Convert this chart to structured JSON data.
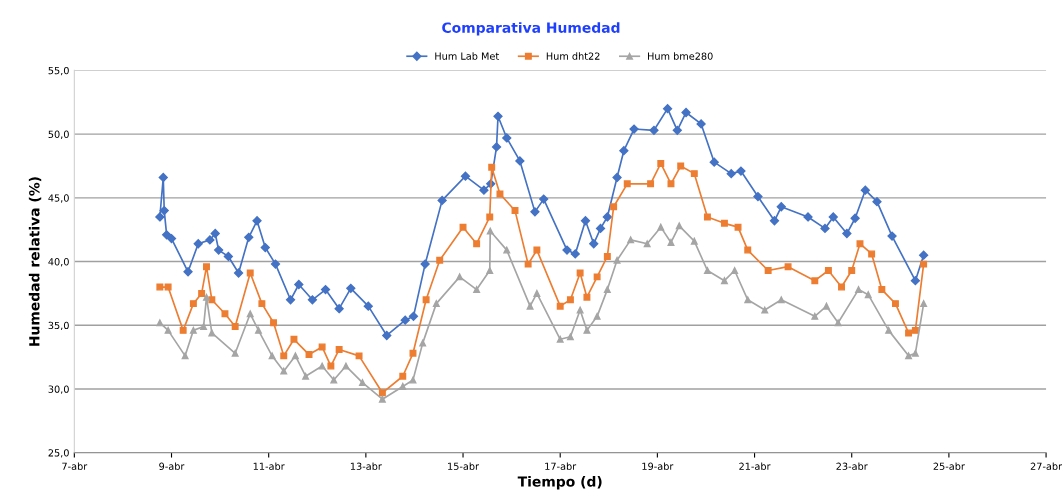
{
  "chart_data": {
    "type": "line",
    "title": "Comparativa Humedad",
    "xlabel": "Tiempo (d)",
    "ylabel": "Humedad relativa (%)",
    "xlim": [
      7,
      27
    ],
    "xticks": [
      {
        "value": 7,
        "label": "7-abr"
      },
      {
        "value": 9,
        "label": "9-abr"
      },
      {
        "value": 11,
        "label": "11-abr"
      },
      {
        "value": 13,
        "label": "13-abr"
      },
      {
        "value": 15,
        "label": "15-abr"
      },
      {
        "value": 17,
        "label": "17-abr"
      },
      {
        "value": 19,
        "label": "19-abr"
      },
      {
        "value": 21,
        "label": "21-abr"
      },
      {
        "value": 23,
        "label": "23-abr"
      },
      {
        "value": 25,
        "label": "25-abr"
      },
      {
        "value": 27,
        "label": "27-abr"
      }
    ],
    "ylim": [
      25,
      55
    ],
    "yticks": [
      {
        "value": 25,
        "label": "25,0"
      },
      {
        "value": 30,
        "label": "30,0"
      },
      {
        "value": 35,
        "label": "35,0"
      },
      {
        "value": 40,
        "label": "40,0"
      },
      {
        "value": 45,
        "label": "45,0"
      },
      {
        "value": 50,
        "label": "50,0"
      },
      {
        "value": 55,
        "label": "55,0"
      }
    ],
    "grid": "y",
    "legend": "top",
    "line_style": "solid",
    "series": [
      {
        "name": "Hum Lab Met",
        "color": "#4472c4",
        "marker": "diamond",
        "x": [
          8.76,
          8.83,
          8.85,
          8.9,
          9.0,
          9.34,
          9.55,
          9.79,
          9.9,
          9.97,
          10.17,
          10.38,
          10.59,
          10.76,
          10.93,
          11.14,
          11.45,
          11.62,
          11.9,
          12.17,
          12.45,
          12.69,
          13.05,
          13.43,
          13.81,
          13.98,
          14.22,
          14.57,
          15.05,
          15.43,
          15.57,
          15.69,
          15.72,
          15.9,
          16.17,
          16.48,
          16.66,
          17.14,
          17.31,
          17.52,
          17.69,
          17.83,
          17.97,
          18.17,
          18.31,
          18.52,
          18.93,
          19.21,
          19.41,
          19.59,
          19.9,
          20.17,
          20.52,
          20.72,
          21.07,
          21.41,
          21.55,
          22.1,
          22.45,
          22.62,
          22.9,
          23.07,
          23.28,
          23.52,
          23.83,
          24.31,
          24.48
        ],
        "values": [
          43.5,
          46.6,
          44.0,
          42.1,
          41.8,
          39.2,
          41.4,
          41.7,
          42.2,
          40.9,
          40.4,
          39.1,
          41.9,
          43.2,
          41.1,
          39.8,
          37.0,
          38.2,
          37.0,
          37.8,
          36.3,
          37.9,
          36.5,
          34.2,
          35.4,
          35.7,
          39.8,
          44.8,
          46.7,
          45.6,
          46.1,
          49.0,
          51.4,
          49.7,
          47.9,
          43.9,
          44.9,
          40.9,
          40.6,
          43.2,
          41.4,
          42.6,
          43.5,
          46.6,
          48.7,
          50.4,
          50.3,
          52.0,
          50.3,
          51.7,
          50.8,
          47.8,
          46.9,
          47.1,
          45.1,
          43.2,
          44.3,
          43.5,
          42.6,
          43.5,
          42.2,
          43.4,
          45.6,
          44.7,
          42.0,
          38.5,
          40.5
        ]
      },
      {
        "name": "Hum dht22",
        "color": "#ed7d31",
        "marker": "square",
        "x": [
          8.76,
          8.93,
          9.24,
          9.45,
          9.62,
          9.72,
          9.83,
          10.1,
          10.31,
          10.62,
          10.86,
          11.1,
          11.31,
          11.52,
          11.83,
          12.1,
          12.28,
          12.45,
          12.86,
          13.34,
          13.76,
          13.97,
          14.24,
          14.52,
          15.0,
          15.28,
          15.55,
          15.59,
          15.76,
          16.07,
          16.34,
          16.52,
          17.0,
          17.21,
          17.41,
          17.55,
          17.76,
          17.97,
          18.1,
          18.38,
          18.86,
          19.07,
          19.28,
          19.48,
          19.76,
          20.03,
          20.38,
          20.66,
          20.86,
          21.28,
          21.69,
          22.24,
          22.52,
          22.79,
          23.0,
          23.17,
          23.41,
          23.62,
          23.9,
          24.17,
          24.31,
          24.48
        ],
        "values": [
          38.0,
          38.0,
          34.6,
          36.7,
          37.5,
          39.6,
          37.0,
          35.9,
          34.9,
          39.1,
          36.7,
          35.2,
          32.6,
          33.9,
          32.7,
          33.3,
          31.8,
          33.1,
          32.6,
          29.7,
          31.0,
          32.8,
          37.0,
          40.1,
          42.7,
          41.4,
          43.5,
          47.4,
          45.3,
          44.0,
          39.8,
          40.9,
          36.5,
          37.0,
          39.1,
          37.2,
          38.8,
          40.4,
          44.3,
          46.1,
          46.1,
          47.7,
          46.1,
          47.5,
          46.9,
          43.5,
          43.0,
          42.7,
          40.9,
          39.3,
          39.6,
          38.5,
          39.3,
          38.0,
          39.3,
          41.4,
          40.6,
          37.8,
          36.7,
          34.4,
          34.6,
          39.8
        ]
      },
      {
        "name": "Hum bme280",
        "color": "#a5a5a5",
        "marker": "triangle",
        "x": [
          8.76,
          8.93,
          9.28,
          9.45,
          9.66,
          9.72,
          9.83,
          10.31,
          10.62,
          10.79,
          11.07,
          11.31,
          11.55,
          11.76,
          12.1,
          12.34,
          12.59,
          12.93,
          13.34,
          13.76,
          13.97,
          14.17,
          14.45,
          14.93,
          15.28,
          15.55,
          15.56,
          15.9,
          16.38,
          16.52,
          17.0,
          17.21,
          17.41,
          17.55,
          17.76,
          17.97,
          18.17,
          18.45,
          18.79,
          19.07,
          19.28,
          19.45,
          19.76,
          20.03,
          20.38,
          20.59,
          20.86,
          21.21,
          21.55,
          22.24,
          22.48,
          22.72,
          23.14,
          23.34,
          23.76,
          24.17,
          24.31,
          24.48
        ],
        "values": [
          35.2,
          34.6,
          32.6,
          34.6,
          34.9,
          37.2,
          34.4,
          32.8,
          35.9,
          34.6,
          32.6,
          31.4,
          32.6,
          31.0,
          31.8,
          30.7,
          31.8,
          30.5,
          29.2,
          30.2,
          30.7,
          33.6,
          36.7,
          38.8,
          37.8,
          39.3,
          42.4,
          40.9,
          36.5,
          37.5,
          33.9,
          34.1,
          36.2,
          34.6,
          35.7,
          37.8,
          40.1,
          41.7,
          41.4,
          42.7,
          41.5,
          42.8,
          41.6,
          39.3,
          38.5,
          39.3,
          37.0,
          36.2,
          37.0,
          35.7,
          36.5,
          35.2,
          37.8,
          37.4,
          34.6,
          32.6,
          32.8,
          36.7
        ]
      }
    ]
  }
}
